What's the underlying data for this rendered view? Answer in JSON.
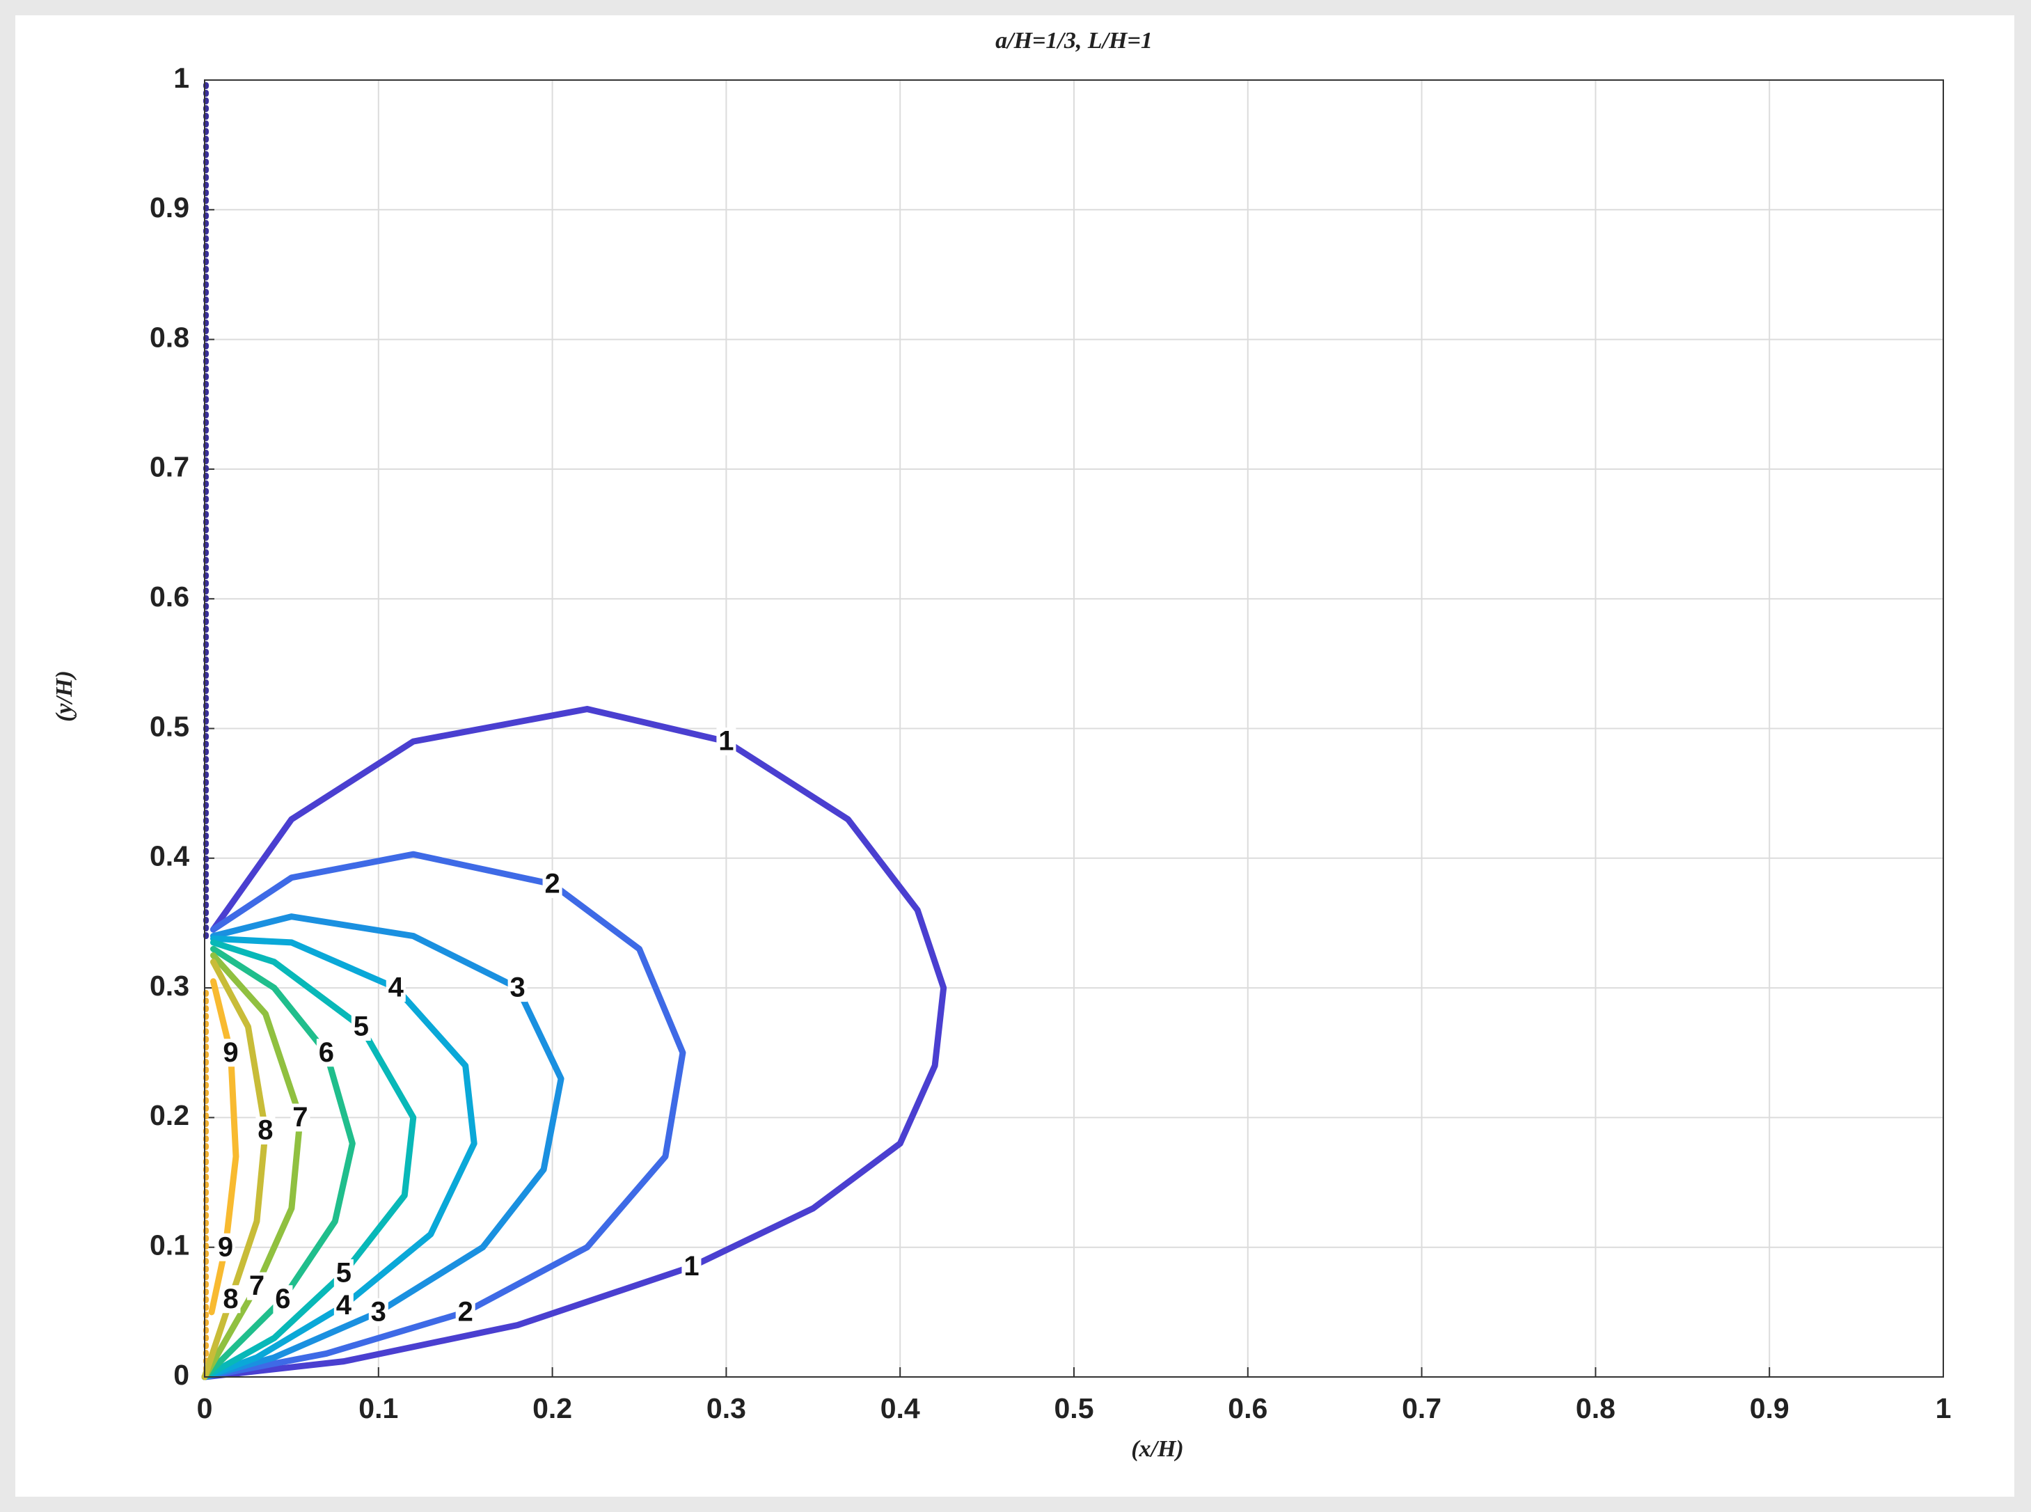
{
  "chart_data": {
    "type": "contour",
    "title": "a/H=1/3, L/H=1",
    "xlabel": "(x/H)",
    "ylabel": "(y/H)",
    "xlim": [
      0,
      1
    ],
    "ylim": [
      0,
      1
    ],
    "xticks": [
      0,
      0.1,
      0.2,
      0.3,
      0.4,
      0.5,
      0.6,
      0.7,
      0.8,
      0.9,
      1
    ],
    "yticks": [
      0,
      0.1,
      0.2,
      0.3,
      0.4,
      0.5,
      0.6,
      0.7,
      0.8,
      0.9,
      1
    ],
    "grid": true,
    "series": [
      {
        "name": "1",
        "color": "#4a3fd0",
        "x": [
          0.005,
          0.05,
          0.12,
          0.22,
          0.3,
          0.37,
          0.41,
          0.425,
          0.42,
          0.4,
          0.35,
          0.28,
          0.18,
          0.08,
          0
        ],
        "y": [
          0.345,
          0.43,
          0.49,
          0.515,
          0.49,
          0.43,
          0.36,
          0.3,
          0.24,
          0.18,
          0.13,
          0.085,
          0.04,
          0.012,
          0
        ]
      },
      {
        "name": "2",
        "color": "#3e6ae6",
        "x": [
          0.005,
          0.05,
          0.12,
          0.2,
          0.25,
          0.275,
          0.265,
          0.22,
          0.15,
          0.07,
          0
        ],
        "y": [
          0.345,
          0.385,
          0.403,
          0.38,
          0.33,
          0.25,
          0.17,
          0.1,
          0.05,
          0.018,
          0
        ]
      },
      {
        "name": "3",
        "color": "#1a90e0",
        "x": [
          0.005,
          0.05,
          0.12,
          0.18,
          0.205,
          0.195,
          0.16,
          0.1,
          0.04,
          0
        ],
        "y": [
          0.34,
          0.355,
          0.34,
          0.3,
          0.23,
          0.16,
          0.1,
          0.05,
          0.015,
          0
        ]
      },
      {
        "name": "4",
        "color": "#0aa8d8",
        "x": [
          0.005,
          0.05,
          0.11,
          0.15,
          0.155,
          0.13,
          0.08,
          0.03,
          0
        ],
        "y": [
          0.338,
          0.335,
          0.3,
          0.24,
          0.18,
          0.11,
          0.055,
          0.015,
          0
        ]
      },
      {
        "name": "5",
        "color": "#08b8b8",
        "x": [
          0.005,
          0.04,
          0.09,
          0.12,
          0.115,
          0.08,
          0.04,
          0
        ],
        "y": [
          0.335,
          0.32,
          0.27,
          0.2,
          0.14,
          0.08,
          0.03,
          0
        ]
      },
      {
        "name": "6",
        "color": "#20be8c",
        "x": [
          0.005,
          0.04,
          0.07,
          0.085,
          0.075,
          0.045,
          0
        ],
        "y": [
          0.33,
          0.3,
          0.25,
          0.18,
          0.12,
          0.06,
          0
        ]
      },
      {
        "name": "7",
        "color": "#90c040",
        "x": [
          0.005,
          0.035,
          0.055,
          0.05,
          0.03,
          0
        ],
        "y": [
          0.325,
          0.28,
          0.2,
          0.13,
          0.07,
          0
        ]
      },
      {
        "name": "8",
        "color": "#c8bc38",
        "x": [
          0.005,
          0.025,
          0.035,
          0.03,
          0.015,
          0
        ],
        "y": [
          0.32,
          0.27,
          0.19,
          0.12,
          0.06,
          0
        ]
      },
      {
        "name": "9",
        "color": "#f8ba30",
        "x": [
          0.005,
          0.015,
          0.018,
          0.012,
          0.004
        ],
        "y": [
          0.305,
          0.25,
          0.17,
          0.1,
          0.05
        ]
      }
    ]
  }
}
